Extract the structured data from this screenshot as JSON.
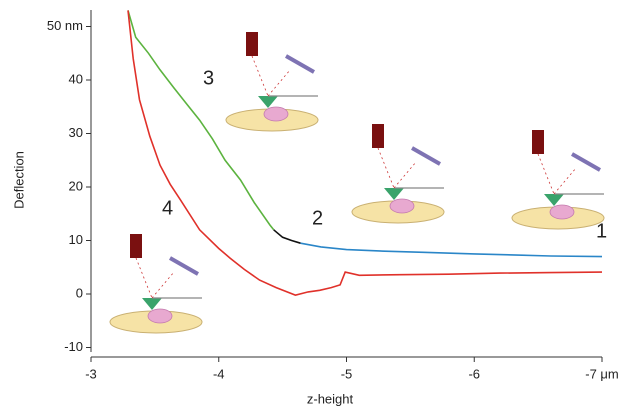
{
  "chart_data": {
    "type": "line",
    "xlabel": "z-height",
    "ylabel": "Deflection",
    "xlim": [
      -3,
      -7
    ],
    "xticks": [
      -3,
      -4,
      -5,
      -6,
      {
        "value": -7,
        "label": "-7 μm"
      }
    ],
    "ylim": [
      -10,
      50
    ],
    "yticks": [
      -10,
      0,
      10,
      20,
      30,
      40,
      {
        "value": 50,
        "label": "50 nm"
      }
    ],
    "annotations": [
      "1",
      "2",
      "3",
      "4"
    ],
    "series": [
      {
        "color": "#5cb33f",
        "x": [
          -3.29,
          -3.35,
          -3.45,
          -3.54,
          -3.65,
          -3.75,
          -3.85,
          -3.95,
          -4.05,
          -4.17,
          -4.28,
          -4.4,
          -4.43
        ],
        "values": [
          53,
          48,
          45,
          41.9,
          38.5,
          35.5,
          32.5,
          29,
          25,
          21.3,
          17,
          12.9,
          12
        ]
      },
      {
        "color": "#111111",
        "x": [
          -4.43,
          -4.5,
          -4.57,
          -4.64
        ],
        "values": [
          12,
          10.6,
          10,
          9.5
        ]
      },
      {
        "color": "#2a86c8",
        "x": [
          -4.64,
          -4.8,
          -5.0,
          -5.3,
          -5.6,
          -6.0,
          -6.3,
          -6.6,
          -7.0
        ],
        "values": [
          9.5,
          8.8,
          8.3,
          8,
          7.8,
          7.5,
          7.3,
          7.1,
          7
        ]
      },
      {
        "color": "#e0312a",
        "x": [
          -3.29,
          -3.33,
          -3.38,
          -3.46,
          -3.54,
          -3.62,
          -3.7,
          -3.85,
          -4.0,
          -4.09,
          -4.2,
          -4.32,
          -4.45,
          -4.6,
          -4.7,
          -4.79,
          -4.88,
          -4.95,
          -4.99,
          -5.1,
          -5.42,
          -5.8,
          -6.2,
          -6.6,
          -7.0
        ],
        "values": [
          53,
          44,
          36.3,
          29.5,
          24.1,
          20.5,
          17.6,
          12,
          8.5,
          6.7,
          4.6,
          2.6,
          1.2,
          -0.2,
          0.4,
          0.7,
          1.2,
          1.7,
          4.1,
          3.5,
          3.6,
          3.7,
          3.9,
          4,
          4.1
        ]
      }
    ]
  }
}
